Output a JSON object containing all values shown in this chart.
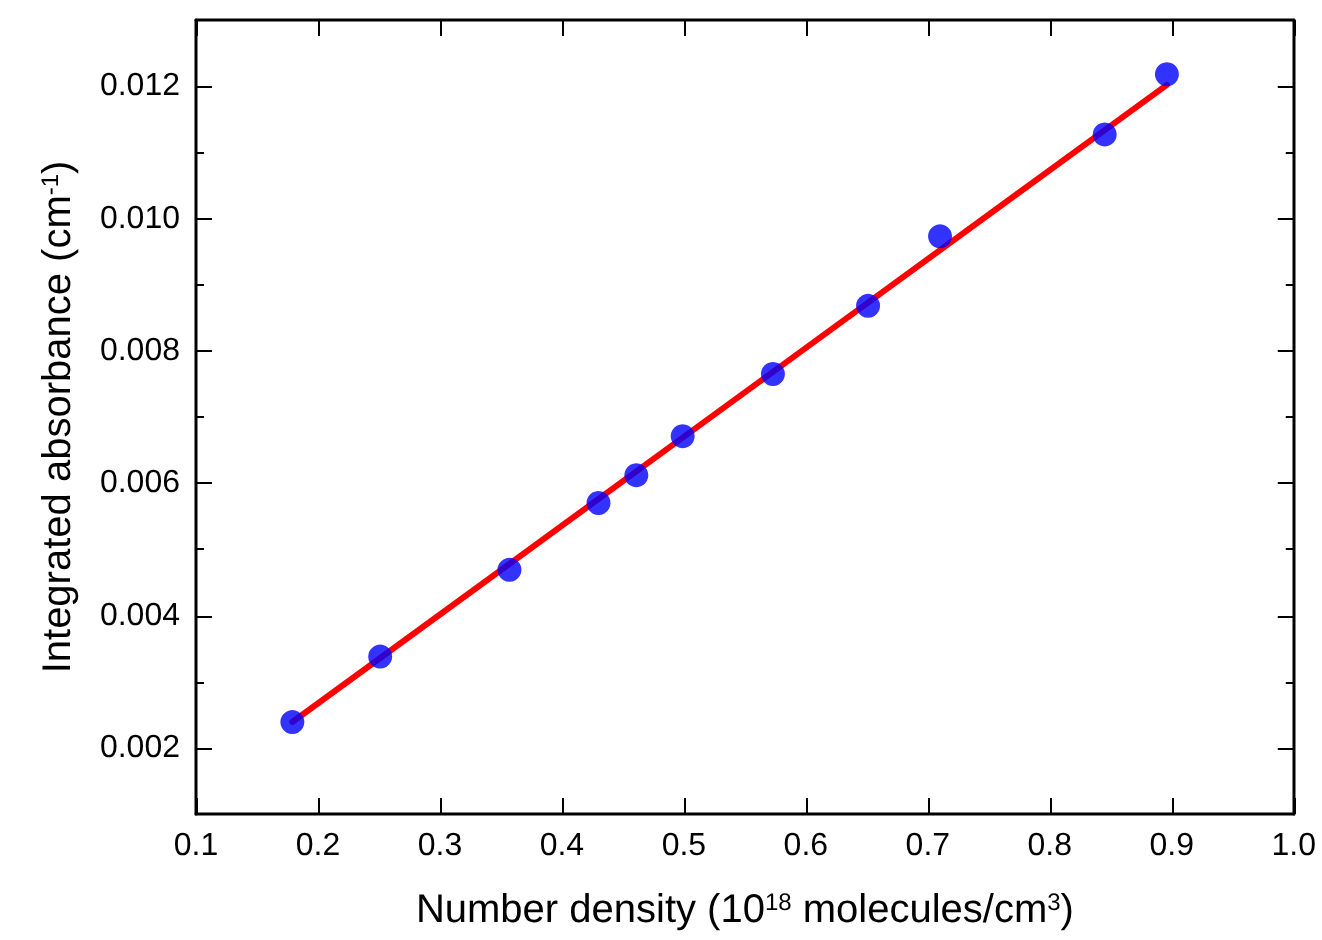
{
  "chart_data": {
    "type": "scatter",
    "xlabel": "Number density (10$^{18}$ molecules/cm$^{3}$)",
    "ylabel": "Integrated absorbance (cm$^{-1}$)",
    "x": [
      0.179,
      0.251,
      0.357,
      0.43,
      0.461,
      0.499,
      0.573,
      0.651,
      0.71,
      0.845,
      0.896
    ],
    "series": [
      {
        "color": "#0000ff",
        "marker": "circle",
        "values": [
          0.00239,
          0.00338,
          0.00469,
          0.0057,
          0.00612,
          0.00671,
          0.00765,
          0.00868,
          0.00973,
          0.01127,
          0.01218
        ]
      },
      {
        "type": "line",
        "color": "#ff0000",
        "marker": "none",
        "line_style": "solid",
        "x": [
          0.179,
          0.896
        ],
        "values": [
          0.00239,
          0.01202
        ]
      }
    ],
    "xlim": [
      0.1,
      1.0
    ],
    "ylim": [
      0.001,
      0.013
    ],
    "xticks": [
      0.1,
      0.2,
      0.3,
      0.4,
      0.5,
      0.6,
      0.7,
      0.8,
      0.9,
      {
        "value": 1.0,
        "label": "1.0"
      }
    ],
    "yticks": [
      0.002,
      0.004,
      0.006,
      0.008,
      {
        "value": 0.01,
        "label": "0.010"
      },
      0.012
    ],
    "grid": false
  }
}
